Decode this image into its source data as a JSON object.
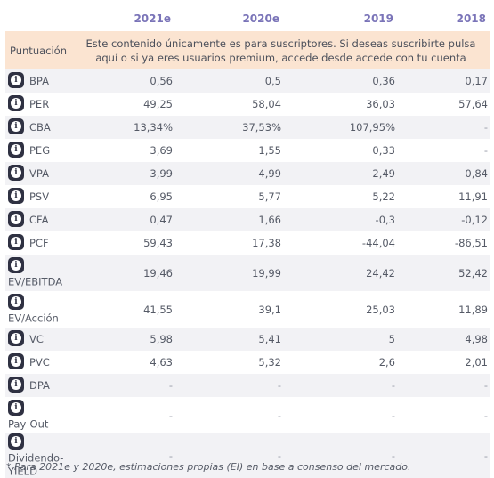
{
  "columns": [
    "2021e",
    "2020e",
    "2019",
    "2018"
  ],
  "promo": {
    "label": "Puntuación",
    "message": "Este contenido únicamente es para suscriptores. Si deseas suscribirte pulsa aquí o si ya eres usuarios premium, accede desde accede con tu cuenta"
  },
  "rows": [
    {
      "label": "BPA",
      "values": [
        "0,56",
        "0,5",
        "0,36",
        "0,17"
      ]
    },
    {
      "label": "PER",
      "values": [
        "49,25",
        "58,04",
        "36,03",
        "57,64"
      ]
    },
    {
      "label": "CBA",
      "values": [
        "13,34%",
        "37,53%",
        "107,95%",
        "-"
      ]
    },
    {
      "label": "PEG",
      "values": [
        "3,69",
        "1,55",
        "0,33",
        "-"
      ]
    },
    {
      "label": "VPA",
      "values": [
        "3,99",
        "4,99",
        "2,49",
        "0,84"
      ]
    },
    {
      "label": "PSV",
      "values": [
        "6,95",
        "5,77",
        "5,22",
        "11,91"
      ]
    },
    {
      "label": "CFA",
      "values": [
        "0,47",
        "1,66",
        "-0,3",
        "-0,12"
      ]
    },
    {
      "label": "PCF",
      "values": [
        "59,43",
        "17,38",
        "-44,04",
        "-86,51"
      ]
    },
    {
      "label": "EV/EBITDA",
      "values": [
        "19,46",
        "19,99",
        "24,42",
        "52,42"
      ]
    },
    {
      "label": "EV/Acción",
      "values": [
        "41,55",
        "39,1",
        "25,03",
        "11,89"
      ]
    },
    {
      "label": "VC",
      "values": [
        "5,98",
        "5,41",
        "5",
        "4,98"
      ]
    },
    {
      "label": "PVC",
      "values": [
        "4,63",
        "5,32",
        "2,6",
        "2,01"
      ]
    },
    {
      "label": "DPA",
      "values": [
        "-",
        "-",
        "-",
        "-"
      ]
    },
    {
      "label": "Pay-Out",
      "values": [
        "-",
        "-",
        "-",
        "-"
      ]
    },
    {
      "label": "Dividendo-YIELD",
      "values": [
        "-",
        "-",
        "-",
        "-"
      ]
    }
  ],
  "footnote": "* Para 2021e y 2020e, estimaciones propias (EI) en base a consenso del mercado."
}
